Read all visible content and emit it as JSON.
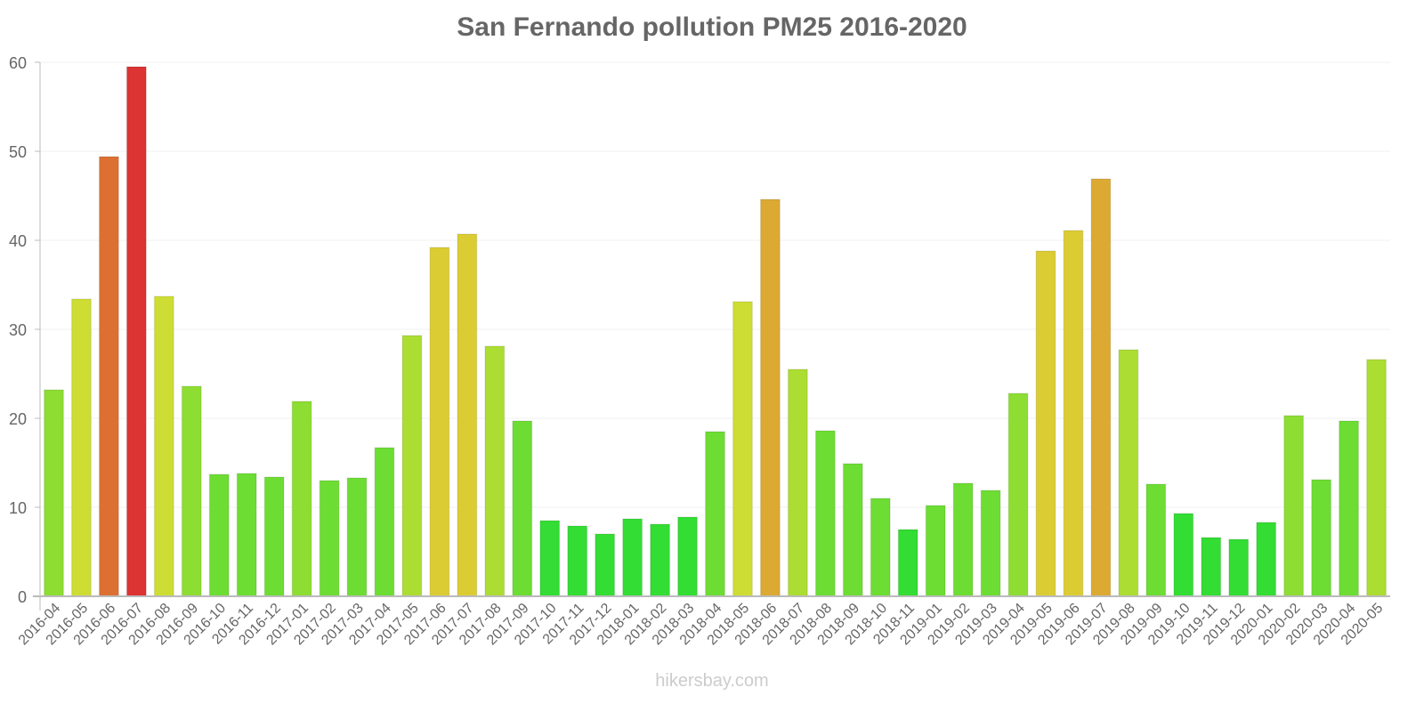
{
  "chart_data": {
    "type": "bar",
    "title": "San Fernando pollution PM25 2016-2020",
    "xlabel": "",
    "ylabel": "",
    "ylim": [
      0,
      60
    ],
    "yticks": [
      0,
      10,
      20,
      30,
      40,
      50,
      60
    ],
    "grid": true,
    "legend": null,
    "categories": [
      "2016-04",
      "2016-05",
      "2016-06",
      "2016-07",
      "2016-08",
      "2016-09",
      "2016-10",
      "2016-11",
      "2016-12",
      "2017-01",
      "2017-02",
      "2017-03",
      "2017-04",
      "2017-05",
      "2017-06",
      "2017-07",
      "2017-08",
      "2017-09",
      "2017-10",
      "2017-11",
      "2017-12",
      "2018-01",
      "2018-02",
      "2018-03",
      "2018-04",
      "2018-05",
      "2018-06",
      "2018-07",
      "2018-08",
      "2018-09",
      "2018-10",
      "2018-11",
      "2019-01",
      "2019-02",
      "2019-03",
      "2019-04",
      "2019-05",
      "2019-06",
      "2019-07",
      "2019-08",
      "2019-09",
      "2019-10",
      "2019-11",
      "2019-12",
      "2020-01",
      "2020-02",
      "2020-03",
      "2020-04",
      "2020-05"
    ],
    "values": [
      23.2,
      33.4,
      49.4,
      59.5,
      33.7,
      23.6,
      13.7,
      13.8,
      13.4,
      21.9,
      13.0,
      13.3,
      16.7,
      29.3,
      39.2,
      40.7,
      28.1,
      19.7,
      8.5,
      7.9,
      7.0,
      8.7,
      8.1,
      8.9,
      18.5,
      33.1,
      44.6,
      25.5,
      18.6,
      14.9,
      11.0,
      7.5,
      10.2,
      12.7,
      11.9,
      22.8,
      38.8,
      41.1,
      46.9,
      27.7,
      12.6,
      9.3,
      6.6,
      6.4,
      8.3,
      20.3,
      13.1,
      19.7,
      26.6
    ],
    "color_scale": [
      {
        "max": 10,
        "color": "#33dd33"
      },
      {
        "max": 20,
        "color": "#6ddd33"
      },
      {
        "max": 25,
        "color": "#8ddd33"
      },
      {
        "max": 30,
        "color": "#acdd33"
      },
      {
        "max": 35,
        "color": "#cedd33"
      },
      {
        "max": 42,
        "color": "#dccc33"
      },
      {
        "max": 48,
        "color": "#dcaa33"
      },
      {
        "max": 55,
        "color": "#dc7033"
      },
      {
        "max": 1000,
        "color": "#dc3333"
      }
    ]
  },
  "footer": {
    "watermark": "hikersbay.com"
  }
}
